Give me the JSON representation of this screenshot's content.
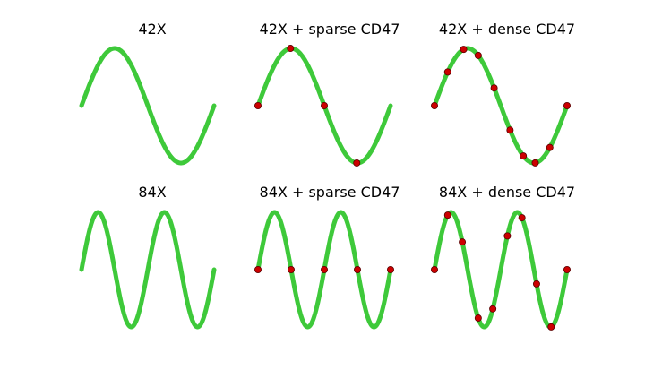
{
  "colors": {
    "wave": "#3ec93a",
    "dot": "#cc0000",
    "background": "#ffffff"
  },
  "panels": [
    {
      "title": "42X",
      "cycles": 1,
      "phase_turns": 0.0,
      "dots": 0
    },
    {
      "title": "42X + sparse CD47",
      "cycles": 1,
      "phase_turns": 0.0,
      "dots": 4
    },
    {
      "title": "42X + dense CD47",
      "cycles": 1,
      "phase_turns": 0.0,
      "dots": 10
    },
    {
      "title": "84X",
      "cycles": 2,
      "phase_turns": 0.0,
      "dots": 0
    },
    {
      "title": "84X + sparse CD47",
      "cycles": 2,
      "phase_turns": 0.0,
      "dots": 5
    },
    {
      "title": "84X + dense CD47",
      "cycles": 2,
      "phase_turns": 0.0,
      "dots": 10
    }
  ]
}
